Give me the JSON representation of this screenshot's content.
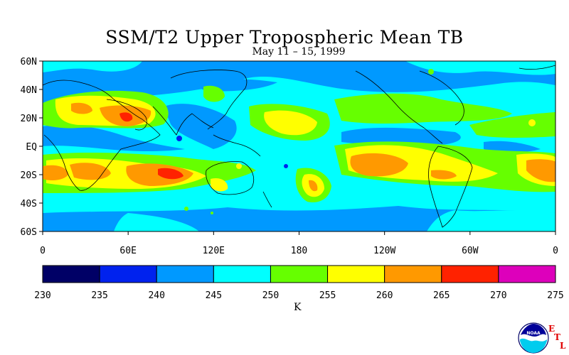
{
  "title": "SSM/T2 Upper Tropospheric Mean TB",
  "subtitle": "May 11 – 15, 1999",
  "lat_labels": [
    "60N",
    "40N",
    "20N",
    "EQ",
    "20S",
    "40S",
    "60S"
  ],
  "lon_labels": [
    "0",
    "60E",
    "120E",
    "180",
    "120W",
    "60W",
    "0"
  ],
  "colorbar": {
    "unit": "K",
    "ticks": [
      "230",
      "235",
      "240",
      "245",
      "250",
      "255",
      "260",
      "265",
      "270",
      "275"
    ],
    "colors": [
      "#000066",
      "#0022ee",
      "#0099ff",
      "#00ffff",
      "#66ff00",
      "#ffff00",
      "#ff9900",
      "#ff2200",
      "#dd00bb"
    ]
  },
  "logo": {
    "text": "NOAA",
    "letters": [
      "E",
      "T",
      "L"
    ]
  }
}
